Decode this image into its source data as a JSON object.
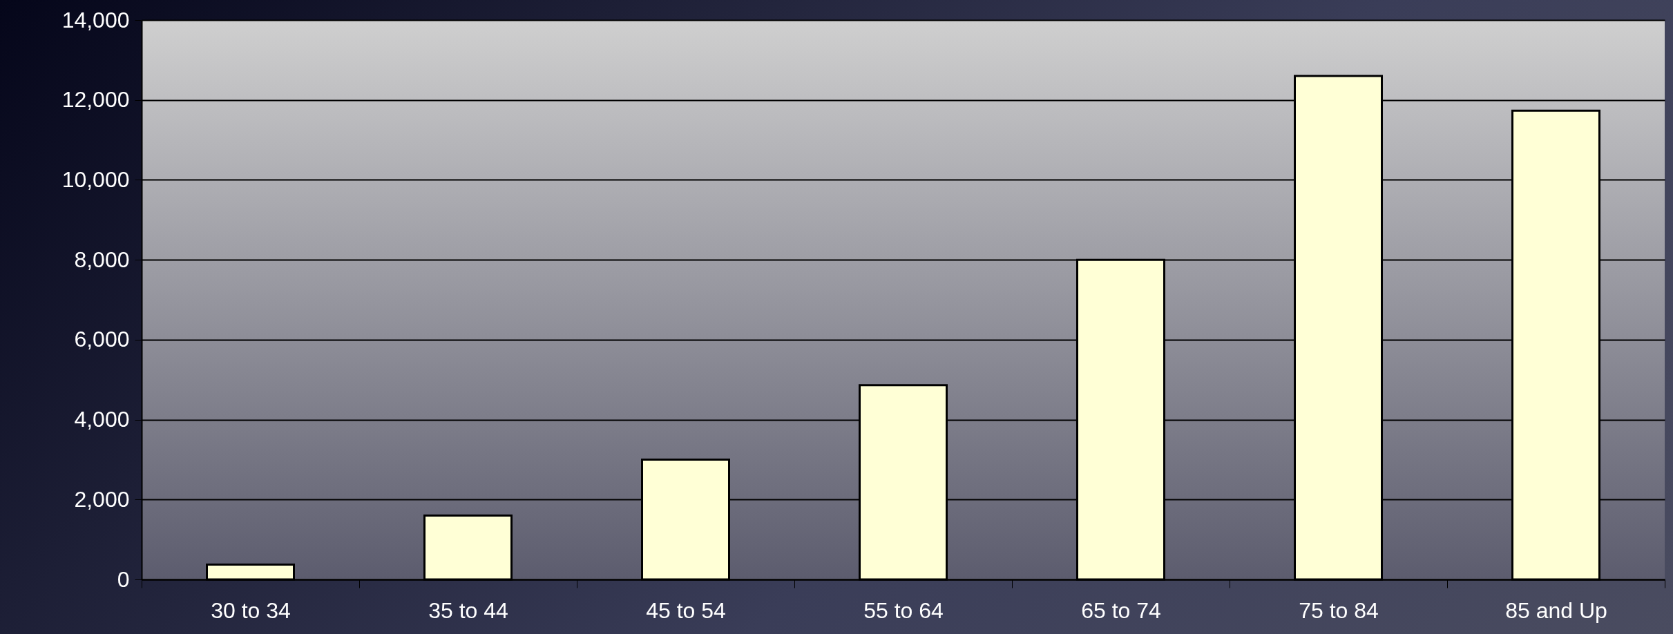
{
  "chart_data": {
    "type": "bar",
    "categories": [
      "30 to 34",
      "35 to 44",
      "45 to 54",
      "55 to 64",
      "65 to 74",
      "75 to 84",
      "85 and Up"
    ],
    "values": [
      370,
      1600,
      3000,
      4860,
      8000,
      12600,
      11730
    ],
    "color": "#ffffd6",
    "ylim": [
      0,
      14000
    ],
    "yticks": [
      0,
      {
        "value": 2000,
        "label": "2,000"
      },
      {
        "value": 4000,
        "label": "4,000"
      },
      {
        "value": 6000,
        "label": "6,000"
      },
      {
        "value": 8000,
        "label": "8,000"
      },
      {
        "value": 10000,
        "label": "10,000"
      },
      {
        "value": 12000,
        "label": "12,000"
      },
      {
        "value": 14000,
        "label": "14,000"
      }
    ],
    "grid": "y"
  }
}
